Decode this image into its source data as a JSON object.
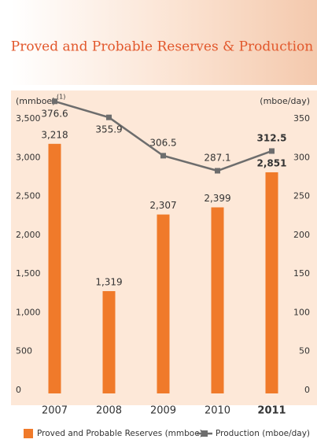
{
  "chart_data": {
    "type": "bar_line",
    "title": "Proved and Probable Reserves & Production",
    "y_label": "(mmboe)",
    "y_label_note": "(1)",
    "y2_label": "(mboe/day)",
    "categories": [
      "2007",
      "2008",
      "2009",
      "2010",
      "2011"
    ],
    "series": [
      {
        "name": "Proved and Probable Reserves (mmboe)",
        "type": "bar",
        "color": "#f07a2a",
        "values": [
          3218,
          1319,
          2307,
          2399,
          2851
        ],
        "value_labels": [
          "3,218",
          "1,319",
          "2,307",
          "2,399",
          "2,851"
        ]
      },
      {
        "name": "Production (mboe/day)",
        "type": "line",
        "axis": "y2",
        "color": "#6d6d6d",
        "values": [
          376.6,
          355.9,
          306.5,
          287.1,
          312.5
        ]
      }
    ],
    "ylim": [
      0,
      3500
    ],
    "yticks": [
      0,
      500,
      {
        "value": 1000,
        "label": "1,000"
      },
      {
        "value": 1500,
        "label": "1,500"
      },
      {
        "value": 2000,
        "label": "2,000"
      },
      {
        "value": 2500,
        "label": "2,500"
      },
      {
        "value": 3000,
        "label": "3,000"
      },
      {
        "value": 3500,
        "label": "3,500"
      }
    ],
    "y2lim": [
      0,
      350
    ],
    "y2ticks": [
      0,
      50,
      100,
      150,
      200,
      250,
      300,
      350
    ],
    "grid": false
  }
}
